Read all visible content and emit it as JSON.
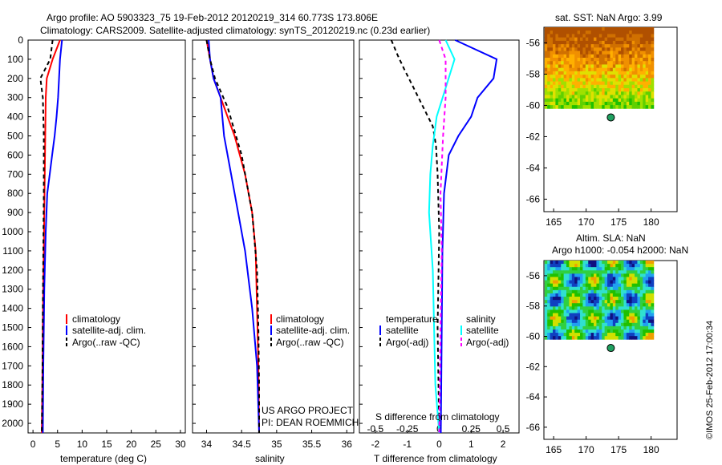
{
  "header": {
    "line1": "Argo profile: AO 5903323_75 19-Feb-2012 20120219_314 60.773S 173.806E",
    "line2": "Climatology: CARS2009. Satellite-adjusted climatology: synTS_20120219.nc (0.23d earlier)"
  },
  "colors": {
    "climatology": "#ff0000",
    "satellite": "#0000ff",
    "argo": "#000000",
    "satellite_salinity": "#00ffff",
    "argo_salinity": "#ff00ff"
  },
  "chart_data": [
    {
      "id": "temperature",
      "type": "line",
      "xlabel": "temperature (deg C)",
      "ylabel": "",
      "xlim": [
        -1,
        31
      ],
      "ylim": [
        2050,
        0
      ],
      "xticks": [
        0,
        5,
        10,
        15,
        20,
        25,
        30
      ],
      "yticks": [
        0,
        100,
        200,
        300,
        400,
        500,
        600,
        700,
        800,
        900,
        1000,
        1100,
        1200,
        1300,
        1400,
        1500,
        1600,
        1700,
        1800,
        1900,
        2000
      ],
      "legend": [
        "climatology",
        "satellite-adj. clim.",
        "Argo(..raw -QC)"
      ],
      "series": [
        {
          "name": "climatology",
          "style": "solid",
          "x": [
            5.5,
            4.0,
            2.8,
            2.6,
            2.5,
            2.4,
            2.3,
            2.2,
            2.1,
            2.0,
            1.9,
            1.8
          ],
          "y": [
            0,
            100,
            200,
            300,
            500,
            700,
            900,
            1100,
            1300,
            1500,
            1800,
            2050
          ]
        },
        {
          "name": "satellite-adj. clim.",
          "style": "solid",
          "x": [
            5.9,
            5.5,
            5.3,
            5.1,
            4.8,
            4.4,
            3.9,
            3.4,
            2.9,
            2.6,
            2.3,
            2.1,
            2.0
          ],
          "y": [
            0,
            100,
            200,
            300,
            400,
            500,
            600,
            700,
            800,
            1000,
            1300,
            1700,
            2050
          ]
        },
        {
          "name": "Argo(..raw -QC)",
          "style": "dashed",
          "x": [
            4.0,
            3.5,
            1.5,
            2.0,
            2.2,
            2.2,
            2.1,
            2.0,
            1.9,
            1.8
          ],
          "y": [
            0,
            100,
            200,
            300,
            500,
            800,
            1100,
            1400,
            1800,
            2050
          ]
        }
      ]
    },
    {
      "id": "salinity",
      "type": "line",
      "xlabel": "salinity",
      "ylabel": "",
      "xlim": [
        33.8,
        36.1
      ],
      "ylim": [
        2050,
        0
      ],
      "xticks": [
        34,
        34.5,
        35,
        35.5,
        36
      ],
      "legend": [
        "climatology",
        "satellite-adj. clim.",
        "Argo(..raw -QC)"
      ],
      "annotations": [
        "US ARGO PROJECT",
        "PI: DEAN ROEMMICH"
      ],
      "series": [
        {
          "name": "climatology",
          "style": "solid",
          "x": [
            34.0,
            34.05,
            34.1,
            34.2,
            34.4,
            34.55,
            34.65,
            34.7,
            34.72,
            34.74,
            34.75
          ],
          "y": [
            0,
            100,
            200,
            300,
            500,
            700,
            900,
            1100,
            1400,
            1700,
            2050
          ]
        },
        {
          "name": "satellite-adj. clim.",
          "style": "solid",
          "x": [
            34.03,
            34.05,
            34.1,
            34.2,
            34.25,
            34.35,
            34.45,
            34.55,
            34.65,
            34.72,
            34.75
          ],
          "y": [
            0,
            100,
            200,
            300,
            500,
            700,
            900,
            1100,
            1400,
            1700,
            2050
          ]
        },
        {
          "name": "Argo(..raw -QC)",
          "style": "dashed",
          "x": [
            34.0,
            34.05,
            34.12,
            34.3,
            34.5,
            34.65,
            34.72,
            34.74,
            34.75,
            34.75
          ],
          "y": [
            0,
            100,
            200,
            350,
            600,
            900,
            1200,
            1500,
            1800,
            2050
          ]
        }
      ]
    },
    {
      "id": "difference",
      "type": "line",
      "xlabel": "T difference from climatology",
      "x2label": "S difference from climatology",
      "ylabel": "",
      "xlim": [
        -2.5,
        2.5
      ],
      "ylim": [
        2050,
        0
      ],
      "xticks": [
        -2,
        -1,
        0,
        1,
        2
      ],
      "x2ticks": [
        -0.5,
        -0.25,
        0,
        0.25,
        0.5
      ],
      "x2lim": [
        -0.625,
        0.625
      ],
      "legend_temperature": {
        "title": "temperature",
        "items": [
          "satellite",
          "Argo(-adj)"
        ]
      },
      "legend_salinity": {
        "title": "salinity",
        "items": [
          "satellite",
          "Argo(-adj)"
        ]
      },
      "series": [
        {
          "name": "temperature satellite",
          "axis": "T",
          "style": "solid",
          "x": [
            0.5,
            1.8,
            1.7,
            1.2,
            1.0,
            0.6,
            0.3,
            0.15,
            0.1,
            0.05
          ],
          "y": [
            0,
            100,
            200,
            300,
            400,
            500,
            600,
            800,
            1100,
            2050
          ]
        },
        {
          "name": "temperature Argo(-adj)",
          "axis": "T",
          "style": "dashed",
          "x": [
            -1.5,
            -1.3,
            -1.1,
            -0.8,
            -0.5,
            -0.2,
            -0.1,
            -0.05,
            0.0,
            -0.05,
            0.0
          ],
          "y": [
            0,
            80,
            150,
            250,
            350,
            450,
            550,
            700,
            1000,
            1500,
            2050
          ]
        },
        {
          "name": "salinity satellite",
          "axis": "S",
          "style": "solid",
          "x": [
            0.05,
            0.12,
            0.05,
            -0.02,
            -0.05,
            -0.07,
            -0.08,
            -0.05,
            -0.04,
            -0.03,
            0.0
          ],
          "y": [
            0,
            100,
            250,
            400,
            550,
            700,
            900,
            1200,
            1500,
            1800,
            2050
          ]
        },
        {
          "name": "salinity Argo(-adj)",
          "axis": "S",
          "style": "dashed",
          "x": [
            0.0,
            0.05,
            0.05,
            0.03,
            0.01,
            0.02,
            0.01,
            0.0
          ],
          "y": [
            0,
            100,
            300,
            500,
            800,
            1100,
            1500,
            2050
          ]
        }
      ]
    },
    {
      "id": "sst_map",
      "type": "heatmap",
      "title": "sat. SST: NaN Argo: 3.99",
      "xlim": [
        163.5,
        184
      ],
      "ylim": [
        -66.8,
        -55
      ],
      "xticks": [
        165,
        170,
        175,
        180
      ],
      "yticks": [
        -56,
        -58,
        -60,
        -62,
        -64,
        -66
      ],
      "data_extent": {
        "lon": [
          163.6,
          180.4
        ],
        "lat": [
          -60.2,
          -55
        ]
      },
      "colors": [
        "#b05000",
        "#d07000",
        "#f09000",
        "#ffb000",
        "#e0e000",
        "#a0e000",
        "#60d000",
        "#20c000"
      ],
      "argo_position": {
        "lon": 173.8,
        "lat": -60.77
      }
    },
    {
      "id": "sla_map",
      "type": "heatmap",
      "title": "Altim. SLA: NaN",
      "subtitle": "Argo h1000: -0.054 h2000: NaN",
      "xlim": [
        163.5,
        184
      ],
      "ylim": [
        -66.8,
        -55
      ],
      "xticks": [
        165,
        170,
        175,
        180
      ],
      "yticks": [
        -56,
        -58,
        -60,
        -62,
        -64,
        -66
      ],
      "data_extent": {
        "lon": [
          163.6,
          180.4
        ],
        "lat": [
          -60.2,
          -55
        ]
      },
      "colors": [
        "#101080",
        "#1040c0",
        "#20a0f0",
        "#30e0d0",
        "#30d040",
        "#20c000",
        "#d0e000",
        "#f0a000"
      ],
      "argo_position": {
        "lon": 173.8,
        "lat": -60.77
      }
    }
  ],
  "footer": {
    "stamp": "©IMOS 25-Feb-2012 17:00:34"
  }
}
